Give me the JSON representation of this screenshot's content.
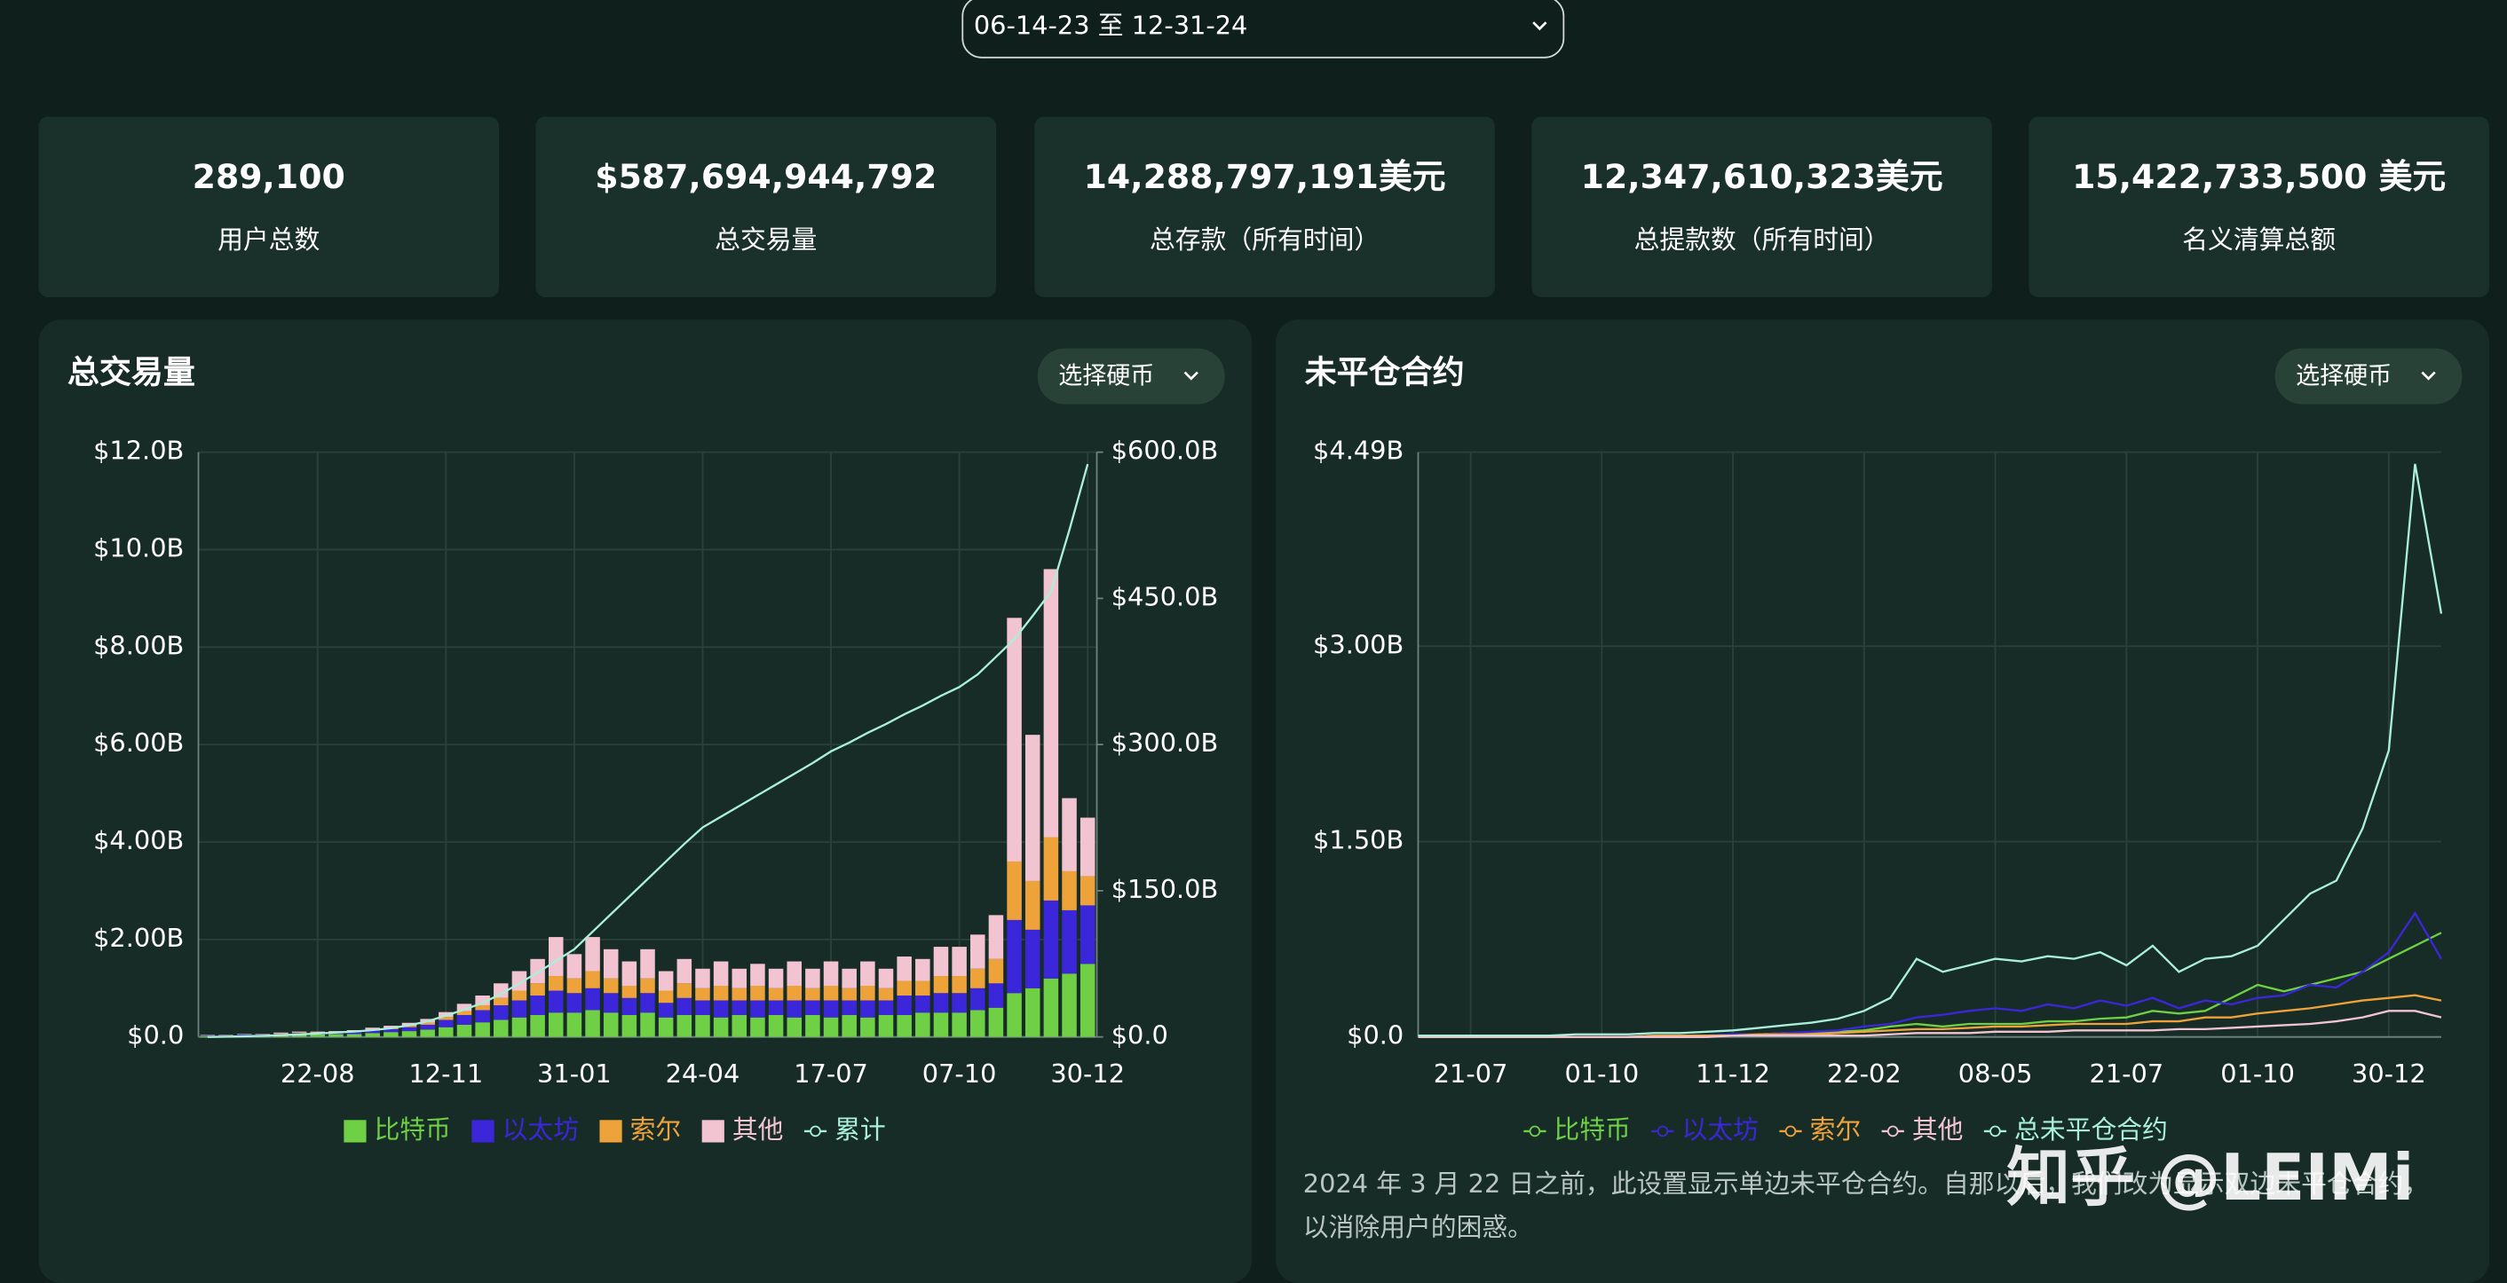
{
  "header": {
    "date_range": "06-14-23 至 12-31-24"
  },
  "stats": [
    {
      "value": "289,100",
      "label": "用户总数"
    },
    {
      "value": "$587,694,944,792",
      "label": "总交易量"
    },
    {
      "value": "14,288,797,191美元",
      "label": "总存款（所有时间）"
    },
    {
      "value": "12,347,610,323美元",
      "label": "总提款数（所有时间）"
    },
    {
      "value": "15,422,733,500 美元",
      "label": "名义清算总额"
    }
  ],
  "chart_data": [
    {
      "type": "bar",
      "title": "总交易量",
      "button": "选择硬币",
      "stacked": true,
      "grid": true,
      "legend": "bottom",
      "categories": [
        null,
        null,
        null,
        null,
        null,
        null,
        "22-08",
        null,
        null,
        null,
        null,
        null,
        null,
        "12-11",
        null,
        null,
        null,
        null,
        null,
        null,
        "31-01",
        null,
        null,
        null,
        null,
        null,
        null,
        "24-04",
        null,
        null,
        null,
        null,
        null,
        null,
        "17-07",
        null,
        null,
        null,
        null,
        null,
        null,
        "07-10",
        null,
        null,
        null,
        null,
        null,
        null,
        "30-12"
      ],
      "ylim": [
        0,
        12
      ],
      "yticks": [
        {
          "value": 0,
          "label": "$0.0"
        },
        {
          "value": 2,
          "label": "$2.00B"
        },
        {
          "value": 4,
          "label": "$4.00B"
        },
        {
          "value": 6,
          "label": "$6.00B"
        },
        {
          "value": 8,
          "label": "$8.00B"
        },
        {
          "value": 10,
          "label": "$10.0B"
        },
        {
          "value": 12,
          "label": "$12.0B"
        }
      ],
      "y2lim": [
        0,
        600
      ],
      "y2ticks": [
        {
          "value": 0,
          "label": "$0.0"
        },
        {
          "value": 150,
          "label": "$150.0B"
        },
        {
          "value": 300,
          "label": "$300.0B"
        },
        {
          "value": 450,
          "label": "$450.0B"
        },
        {
          "value": 600,
          "label": "$600.0B"
        }
      ],
      "series": [
        {
          "name": "比特币",
          "color": "#6fcf45",
          "values": [
            0.02,
            0.02,
            0.03,
            0.03,
            0.04,
            0.05,
            0.05,
            0.06,
            0.06,
            0.08,
            0.1,
            0.12,
            0.15,
            0.2,
            0.25,
            0.3,
            0.35,
            0.4,
            0.45,
            0.5,
            0.5,
            0.55,
            0.5,
            0.45,
            0.5,
            0.4,
            0.45,
            0.45,
            0.4,
            0.45,
            0.4,
            0.45,
            0.4,
            0.45,
            0.4,
            0.45,
            0.4,
            0.45,
            0.45,
            0.5,
            0.5,
            0.5,
            0.55,
            0.6,
            0.9,
            1.0,
            1.2,
            1.3,
            1.5
          ]
        },
        {
          "name": "以太坊",
          "color": "#3b26d9",
          "values": [
            0.01,
            0.01,
            0.02,
            0.02,
            0.02,
            0.03,
            0.03,
            0.03,
            0.04,
            0.05,
            0.06,
            0.08,
            0.1,
            0.15,
            0.2,
            0.25,
            0.3,
            0.35,
            0.4,
            0.45,
            0.4,
            0.45,
            0.4,
            0.35,
            0.4,
            0.3,
            0.35,
            0.3,
            0.35,
            0.3,
            0.35,
            0.3,
            0.35,
            0.3,
            0.35,
            0.3,
            0.35,
            0.3,
            0.4,
            0.35,
            0.4,
            0.4,
            0.45,
            0.5,
            1.5,
            1.2,
            1.6,
            1.3,
            1.2
          ]
        },
        {
          "name": "索尔",
          "color": "#eea33a",
          "values": [
            0,
            0,
            0,
            0,
            0.01,
            0.01,
            0.01,
            0.01,
            0.01,
            0.02,
            0.02,
            0.03,
            0.04,
            0.06,
            0.08,
            0.1,
            0.15,
            0.2,
            0.25,
            0.3,
            0.3,
            0.35,
            0.3,
            0.25,
            0.3,
            0.25,
            0.3,
            0.25,
            0.3,
            0.25,
            0.3,
            0.25,
            0.3,
            0.25,
            0.3,
            0.25,
            0.3,
            0.25,
            0.3,
            0.3,
            0.35,
            0.35,
            0.4,
            0.5,
            1.2,
            1.0,
            1.3,
            0.8,
            0.6
          ]
        },
        {
          "name": "其他",
          "color": "#f2c3d0",
          "values": [
            0.01,
            0.01,
            0.01,
            0.01,
            0.02,
            0.02,
            0.02,
            0.02,
            0.03,
            0.04,
            0.05,
            0.06,
            0.08,
            0.1,
            0.15,
            0.2,
            0.3,
            0.4,
            0.5,
            0.8,
            0.5,
            0.7,
            0.6,
            0.5,
            0.6,
            0.4,
            0.5,
            0.4,
            0.5,
            0.4,
            0.45,
            0.4,
            0.5,
            0.4,
            0.5,
            0.4,
            0.5,
            0.4,
            0.5,
            0.45,
            0.6,
            0.6,
            0.7,
            0.9,
            5.0,
            3.0,
            5.5,
            1.5,
            1.2
          ]
        },
        {
          "name": "累计",
          "color": "#a9efd9",
          "axis": "y2",
          "values": [
            0,
            0.3,
            0.7,
            1.2,
            1.8,
            2.5,
            3.5,
            4.5,
            5.5,
            7,
            9,
            12,
            16,
            22,
            28,
            35,
            44,
            55,
            66,
            78,
            90,
            108,
            126,
            144,
            162,
            180,
            198,
            215,
            226,
            237,
            248,
            259,
            270,
            281,
            293,
            302,
            312,
            321,
            331,
            340,
            350,
            359,
            372,
            390,
            408,
            432,
            457,
            520,
            587.7
          ]
        }
      ]
    },
    {
      "type": "line",
      "title": "未平仓合约",
      "button": "选择硬币",
      "grid": true,
      "legend": "bottom",
      "categories": [
        null,
        null,
        "21-07",
        null,
        null,
        null,
        null,
        "01-10",
        null,
        null,
        null,
        null,
        "11-12",
        null,
        null,
        null,
        null,
        "22-02",
        null,
        null,
        null,
        null,
        "08-05",
        null,
        null,
        null,
        null,
        "21-07",
        null,
        null,
        null,
        null,
        "01-10",
        null,
        null,
        null,
        null,
        "30-12",
        null,
        null
      ],
      "ylim": [
        0,
        4.49
      ],
      "yticks": [
        {
          "value": 0,
          "label": "$0.0"
        },
        {
          "value": 1.5,
          "label": "$1.50B"
        },
        {
          "value": 3,
          "label": "$3.00B"
        },
        {
          "value": 4.49,
          "label": "$4.49B"
        }
      ],
      "series": [
        {
          "name": "比特币",
          "color": "#6fcf45",
          "values": [
            0,
            0,
            0,
            0,
            0,
            0,
            0,
            0,
            0,
            0.01,
            0.01,
            0.01,
            0.02,
            0.02,
            0.03,
            0.03,
            0.04,
            0.05,
            0.08,
            0.1,
            0.08,
            0.1,
            0.1,
            0.1,
            0.12,
            0.12,
            0.14,
            0.15,
            0.2,
            0.18,
            0.2,
            0.3,
            0.4,
            0.35,
            0.4,
            0.45,
            0.5,
            0.6,
            0.7,
            0.8
          ]
        },
        {
          "name": "以太坊",
          "color": "#3b26d9",
          "values": [
            0,
            0,
            0,
            0,
            0,
            0,
            0,
            0,
            0,
            0.01,
            0.01,
            0.01,
            0.02,
            0.02,
            0.03,
            0.04,
            0.05,
            0.08,
            0.1,
            0.15,
            0.17,
            0.2,
            0.22,
            0.2,
            0.25,
            0.22,
            0.28,
            0.24,
            0.3,
            0.22,
            0.28,
            0.25,
            0.3,
            0.32,
            0.4,
            0.38,
            0.5,
            0.65,
            0.95,
            0.6
          ]
        },
        {
          "name": "索尔",
          "color": "#eea33a",
          "values": [
            0,
            0,
            0,
            0,
            0,
            0,
            0,
            0,
            0,
            0.01,
            0.01,
            0.01,
            0.01,
            0.02,
            0.02,
            0.02,
            0.03,
            0.04,
            0.05,
            0.06,
            0.06,
            0.07,
            0.08,
            0.08,
            0.09,
            0.1,
            0.1,
            0.1,
            0.12,
            0.12,
            0.15,
            0.15,
            0.18,
            0.2,
            0.22,
            0.25,
            0.28,
            0.3,
            0.32,
            0.28
          ]
        },
        {
          "name": "其他",
          "color": "#f2c3d0",
          "values": [
            0,
            0,
            0,
            0,
            0,
            0,
            0,
            0,
            0,
            0,
            0,
            0,
            0.01,
            0.01,
            0.01,
            0.01,
            0.01,
            0.01,
            0.02,
            0.03,
            0.03,
            0.03,
            0.04,
            0.04,
            0.04,
            0.05,
            0.05,
            0.05,
            0.05,
            0.06,
            0.06,
            0.07,
            0.08,
            0.09,
            0.1,
            0.12,
            0.15,
            0.2,
            0.2,
            0.15
          ]
        },
        {
          "name": "总未平仓合约",
          "color": "#a9efd9",
          "values": [
            0.01,
            0.01,
            0.01,
            0.01,
            0.01,
            0.01,
            0.02,
            0.02,
            0.02,
            0.03,
            0.03,
            0.04,
            0.05,
            0.07,
            0.09,
            0.11,
            0.14,
            0.2,
            0.3,
            0.6,
            0.5,
            0.55,
            0.6,
            0.58,
            0.62,
            0.6,
            0.65,
            0.55,
            0.7,
            0.5,
            0.6,
            0.62,
            0.7,
            0.9,
            1.1,
            1.2,
            1.6,
            2.2,
            4.4,
            3.25
          ]
        }
      ],
      "note": [
        "2024 年 3 月 22 日之前，此设置显示单边未平仓合约。自那以后，我们改为显示双边未平仓合约，",
        "以消除用户的困惑。"
      ]
    }
  ],
  "watermark": "知乎 @LEIMi"
}
